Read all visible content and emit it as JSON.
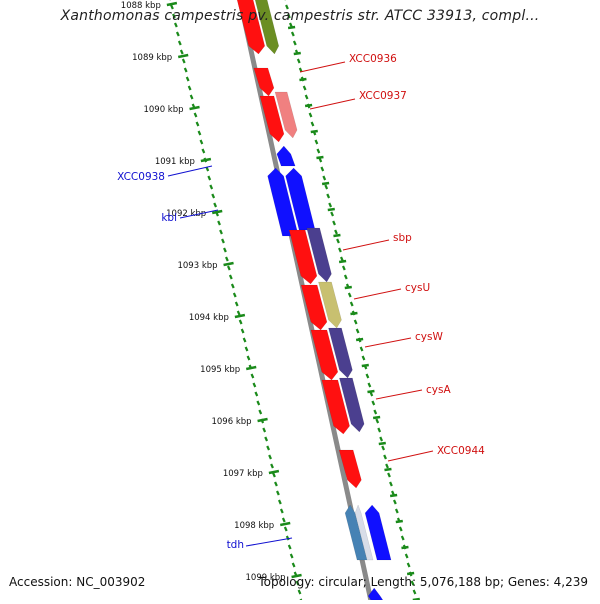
{
  "view": {
    "title": "Xanthomonas campestris pv. campestris str. ATCC 33913, compl...",
    "accession": "Accession: NC_003902",
    "summary": "Topology: circular; Length: 5,076,188 bp; Genes: 4,239"
  },
  "ticks": [
    {
      "label": "1088 kbp"
    },
    {
      "label": "1089 kbp"
    },
    {
      "label": "1090 kbp"
    },
    {
      "label": "1091 kbp"
    },
    {
      "label": "1092 kbp"
    },
    {
      "label": "1093 kbp"
    },
    {
      "label": "1094 kbp"
    },
    {
      "label": "1095 kbp"
    },
    {
      "label": "1096 kbp"
    },
    {
      "label": "1097 kbp"
    },
    {
      "label": "1098 kbp"
    },
    {
      "label": "1099 kbp"
    }
  ],
  "gene_labels": [
    {
      "text": "XCC0936",
      "color": "#d01010"
    },
    {
      "text": "XCC0937",
      "color": "#d01010"
    },
    {
      "text": "XCC0938",
      "color": "#1010d0"
    },
    {
      "text": "kbl",
      "color": "#1010d0"
    },
    {
      "text": "sbp",
      "color": "#d01010"
    },
    {
      "text": "cysU",
      "color": "#d01010"
    },
    {
      "text": "cysW",
      "color": "#d01010"
    },
    {
      "text": "cysA",
      "color": "#d01010"
    },
    {
      "text": "XCC0944",
      "color": "#d01010"
    },
    {
      "text": "tdh",
      "color": "#1010d0"
    }
  ],
  "colors": {
    "backbone": "#8a8a8a",
    "tick_dots": "#1a8a1a",
    "forward_gene": "#ff1010",
    "reverse_gene": "#1010ff",
    "cog_green": "#6b8e23",
    "cog_pink": "#f08080",
    "cog_purple": "#4b3f8f",
    "cog_khaki": "#c8c070",
    "cog_steel": "#4682b4"
  }
}
